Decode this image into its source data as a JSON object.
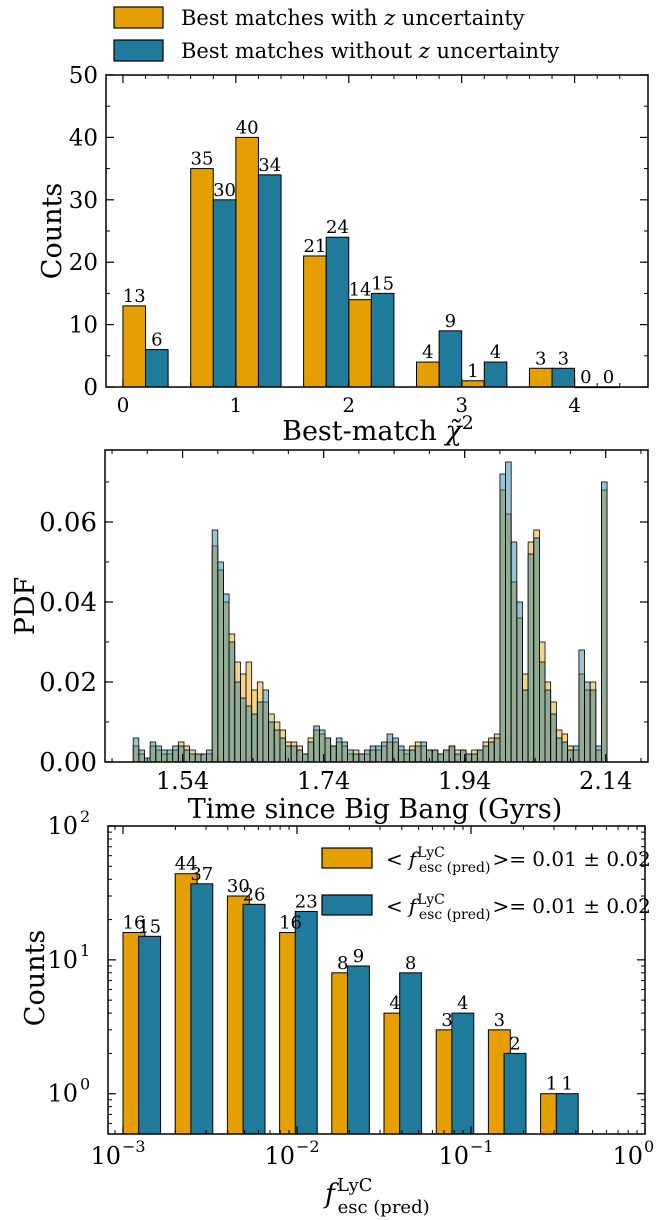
{
  "colors": {
    "orange": "#E69F00",
    "blue": "#1F7A9C",
    "edge": "#000000"
  },
  "chart_data": [
    {
      "type": "bar",
      "xlabel": "Best-match χ̃²",
      "ylabel": "Counts",
      "ylim": [
        0,
        50
      ],
      "xlim": [
        -0.15,
        4.65
      ],
      "yticks": [
        "0",
        "10",
        "20",
        "30",
        "40",
        "50"
      ],
      "xticks": [
        "0",
        "1",
        "2",
        "3",
        "4"
      ],
      "legend": {
        "position": "top-left (above plot)"
      },
      "categories": [
        0.2,
        0.8,
        1.2,
        1.8,
        2.2,
        2.8,
        3.2,
        3.8,
        4.2
      ],
      "bar_width": 0.2,
      "series": [
        {
          "name": "Best matches with z uncertainty",
          "color": "#E69F00",
          "values": [
            13,
            35,
            40,
            21,
            14,
            4,
            1,
            3,
            0
          ]
        },
        {
          "name": "Best matches without z uncertainty",
          "color": "#1F7A9C",
          "values": [
            6,
            30,
            34,
            24,
            15,
            9,
            4,
            3,
            0
          ]
        }
      ]
    },
    {
      "type": "bar",
      "xlabel": "Time since Big Bang (Gyrs)",
      "ylabel": "PDF",
      "xlim": [
        1.43,
        2.2
      ],
      "ylim": [
        0,
        0.078
      ],
      "xticks": [
        "1.54",
        "1.74",
        "1.94",
        "2.14"
      ],
      "yticks": [
        "0.00",
        "0.02",
        "0.04",
        "0.06"
      ],
      "x_start": 1.47,
      "bin_width": 0.008,
      "series": [
        {
          "name": "",
          "color": "#E69F00",
          "values": [
            0.004,
            0.002,
            0.0,
            0.004,
            0.003,
            0.002,
            0.002,
            0.003,
            0.005,
            0.004,
            0.003,
            0.002,
            0.002,
            0.002,
            0.054,
            0.048,
            0.04,
            0.032,
            0.025,
            0.022,
            0.025,
            0.018,
            0.02,
            0.015,
            0.012,
            0.01,
            0.008,
            0.005,
            0.005,
            0.004,
            0.002,
            0.006,
            0.008,
            0.007,
            0.006,
            0.004,
            0.005,
            0.004,
            0.002,
            0.003,
            0.002,
            0.002,
            0.003,
            0.003,
            0.004,
            0.005,
            0.005,
            0.003,
            0.002,
            0.004,
            0.005,
            0.004,
            0.003,
            0.003,
            0.002,
            0.003,
            0.004,
            0.003,
            0.003,
            0.002,
            0.003,
            0.003,
            0.005,
            0.006,
            0.007,
            0.068,
            0.062,
            0.045,
            0.036,
            0.022,
            0.055,
            0.058,
            0.03,
            0.02,
            0.015,
            0.008,
            0.007,
            0.004,
            0.003,
            0.022,
            0.018,
            0.02,
            0.003,
            0.068
          ]
        },
        {
          "name": "",
          "color": "#1F7A9C",
          "values": [
            0.006,
            0.003,
            0.001,
            0.005,
            0.004,
            0.003,
            0.003,
            0.004,
            0.004,
            0.003,
            0.002,
            0.002,
            0.002,
            0.003,
            0.058,
            0.05,
            0.042,
            0.03,
            0.02,
            0.016,
            0.014,
            0.012,
            0.015,
            0.018,
            0.01,
            0.008,
            0.006,
            0.004,
            0.004,
            0.003,
            0.002,
            0.005,
            0.009,
            0.008,
            0.006,
            0.004,
            0.006,
            0.005,
            0.003,
            0.002,
            0.002,
            0.003,
            0.004,
            0.004,
            0.005,
            0.007,
            0.006,
            0.004,
            0.003,
            0.003,
            0.004,
            0.005,
            0.003,
            0.003,
            0.002,
            0.003,
            0.004,
            0.002,
            0.003,
            0.002,
            0.002,
            0.003,
            0.004,
            0.005,
            0.006,
            0.072,
            0.075,
            0.055,
            0.04,
            0.018,
            0.052,
            0.056,
            0.025,
            0.018,
            0.012,
            0.006,
            0.005,
            0.003,
            0.004,
            0.028,
            0.02,
            0.018,
            0.004,
            0.07
          ]
        }
      ]
    },
    {
      "type": "bar",
      "xlabel": "f_esc (pred)^LyC",
      "ylabel": "Counts",
      "xscale": "log",
      "yscale": "log",
      "xlim": [
        0.00082,
        1.0
      ],
      "ylim": [
        0.5,
        100
      ],
      "xticks": [
        "10^-3",
        "10^-2",
        "10^-1",
        "10^0"
      ],
      "yticks": [
        "10^0",
        "10^1",
        "10^2"
      ],
      "legend": {
        "position": "top-right"
      },
      "bin_edges_log10": [
        -3,
        -2.7,
        -2.4,
        -2.1,
        -1.8,
        -1.5,
        -1.2,
        -0.9,
        -0.6,
        -0.3
      ],
      "series": [
        {
          "name": "< f_esc (pred)^LyC >= 0.01 ± 0.02",
          "color": "#E69F00",
          "values": [
            16,
            44,
            30,
            16,
            8,
            4,
            3,
            3,
            1
          ]
        },
        {
          "name": "< f_esc (pred)^LyC >= 0.01 ± 0.02",
          "color": "#1F7A9C",
          "values": [
            15,
            37,
            26,
            23,
            9,
            8,
            4,
            2,
            1
          ]
        }
      ]
    }
  ],
  "legend_top": {
    "item1": {
      "pre": "Best matches with ",
      "z": "z",
      "post": " uncertainty"
    },
    "item2": {
      "pre": "Best matches without ",
      "z": "z",
      "post": " uncertainty"
    }
  },
  "labels": {
    "p1_ylabel": "Counts",
    "p1_xlabel_pre": "Best-match ",
    "p1_xlabel_chi": "χ̃",
    "p1_xlabel_sup": "2",
    "p2_ylabel": "PDF",
    "p2_xlabel": "Time since Big Bang (Gyrs)",
    "p3_ylabel": "Counts",
    "p3_xlabel_f": "f",
    "p3_xlabel_sup": "LyC",
    "p3_xlabel_sub": "esc (pred)",
    "p3_tick_base": "10",
    "legend3_lt": "<",
    "legend3_f": "f",
    "legend3_sup": "LyC",
    "legend3_sub": "esc (pred)",
    "legend3_value": ">= 0.01 ± 0.02"
  }
}
